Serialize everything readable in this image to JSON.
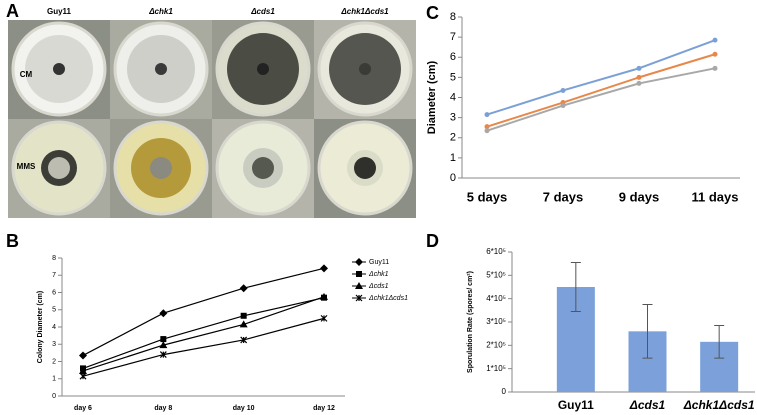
{
  "panels": {
    "letters": [
      "A",
      "B",
      "C",
      "D"
    ],
    "column_labels": [
      "Guy11",
      "Δchk1",
      "Δcds1",
      "Δchk1Δcds1"
    ],
    "row_labels": [
      "CM",
      "MMS"
    ]
  },
  "chart_data": [
    {
      "type": "line",
      "ylabel": "Colony Diameter (cm)",
      "categories": [
        "day 6",
        "day 8",
        "day 10",
        "day 12"
      ],
      "series": [
        {
          "name": "Guy11",
          "color": "#000000",
          "marker": "diamond",
          "values": [
            2.35,
            4.8,
            6.25,
            7.4
          ]
        },
        {
          "name": "Δchk1",
          "color": "#000000",
          "marker": "square",
          "values": [
            1.6,
            3.3,
            4.65,
            5.7
          ]
        },
        {
          "name": "Δcds1",
          "color": "#000000",
          "marker": "triangle",
          "values": [
            1.45,
            2.95,
            4.15,
            5.75
          ]
        },
        {
          "name": "Δchk1Δcds1",
          "color": "#000000",
          "marker": "star",
          "values": [
            1.15,
            2.4,
            3.25,
            4.5
          ]
        }
      ],
      "ylim": [
        0,
        8
      ],
      "yticks": [
        0,
        1,
        2,
        3,
        4,
        5,
        6,
        7,
        8
      ],
      "legend": "right"
    },
    {
      "type": "line",
      "ylabel": "Diameter (cm)",
      "categories": [
        "5 days",
        "7 days",
        "9 days",
        "11 days"
      ],
      "series": [
        {
          "color": "#7ba0d6",
          "marker": "circle",
          "values": [
            3.15,
            4.35,
            5.45,
            6.85
          ]
        },
        {
          "color": "#e8874a",
          "marker": "circle",
          "values": [
            2.55,
            3.75,
            5.0,
            6.15
          ]
        },
        {
          "color": "#a8a8a8",
          "marker": "circle",
          "values": [
            2.35,
            3.6,
            4.7,
            5.45
          ]
        }
      ],
      "ylim": [
        0,
        8
      ],
      "yticks": [
        0,
        1,
        2,
        3,
        4,
        5,
        6,
        7,
        8
      ]
    },
    {
      "type": "bar",
      "ylabel": "Sporulation Rate (spores/ cm²)",
      "categories": [
        "Guy11",
        "Δcds1",
        "Δchk1Δcds1"
      ],
      "values": [
        450000,
        260000,
        215000
      ],
      "errors": [
        105000,
        115000,
        70000
      ],
      "color": "#7ba0da",
      "ylim": [
        0,
        600000
      ],
      "yticks": [
        0,
        {
          "value": 100000,
          "label": "1*10⁵"
        },
        {
          "value": 200000,
          "label": "2*10⁵"
        },
        {
          "value": 300000,
          "label": "3*10⁵"
        },
        {
          "value": 400000,
          "label": "4*10⁵"
        },
        {
          "value": 500000,
          "label": "5*10⁵"
        },
        {
          "value": 600000,
          "label": "6*10⁵"
        }
      ]
    }
  ]
}
